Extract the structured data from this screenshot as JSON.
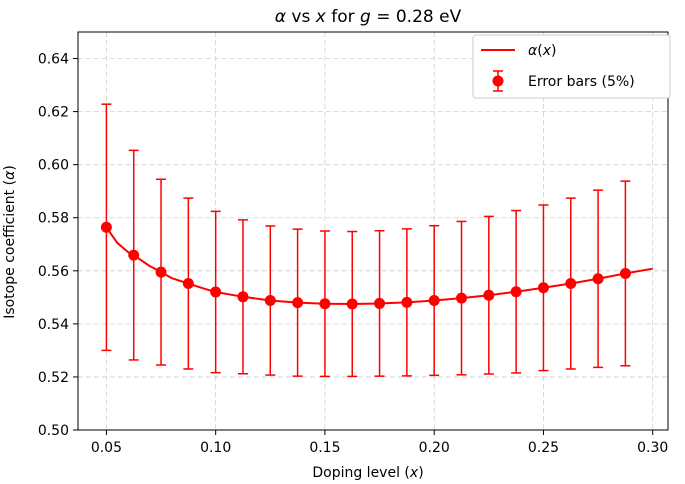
{
  "chart_data": {
    "type": "line",
    "title_parts": {
      "greek": "α",
      "mid": " vs ",
      "var": "x",
      "for": " for ",
      "g": "g",
      "rest": " = 0.28 eV"
    },
    "xlabel": {
      "text": "Doping level (",
      "var": "x",
      "close": ")"
    },
    "ylabel": {
      "text": "Isotope coefficient (",
      "greek": "α",
      "close": ")"
    },
    "xlim": [
      0.037,
      0.307
    ],
    "ylim": [
      0.5,
      0.65
    ],
    "xticks": [
      0.05,
      0.1,
      0.15,
      0.2,
      0.25,
      0.3
    ],
    "xtick_labels": [
      "0.05",
      "0.10",
      "0.15",
      "0.20",
      "0.25",
      "0.30"
    ],
    "yticks": [
      0.5,
      0.52,
      0.54,
      0.56,
      0.58,
      0.6,
      0.62,
      0.64
    ],
    "ytick_labels": [
      "0.50",
      "0.52",
      "0.54",
      "0.56",
      "0.58",
      "0.60",
      "0.62",
      "0.64"
    ],
    "grid": true,
    "legend_position": "top-right",
    "color": "#ff0000",
    "series": [
      {
        "name": "α(x)",
        "kind": "line",
        "x": [
          0.05,
          0.055,
          0.06,
          0.0625,
          0.07,
          0.075,
          0.08,
          0.0875,
          0.095,
          0.1,
          0.1125,
          0.125,
          0.1375,
          0.15,
          0.1625,
          0.175,
          0.1875,
          0.2,
          0.2125,
          0.225,
          0.2375,
          0.25,
          0.2625,
          0.275,
          0.2875,
          0.3
        ],
        "y": [
          0.5764,
          0.5705,
          0.567,
          0.5659,
          0.5617,
          0.5595,
          0.5572,
          0.5552,
          0.5532,
          0.552,
          0.5502,
          0.5488,
          0.548,
          0.5476,
          0.5475,
          0.5477,
          0.5481,
          0.5488,
          0.5497,
          0.5508,
          0.5521,
          0.5536,
          0.5552,
          0.557,
          0.559,
          0.5608
        ]
      },
      {
        "name": "Error bars (5%)",
        "kind": "errorbar",
        "x": [
          0.05,
          0.0625,
          0.075,
          0.0875,
          0.1,
          0.1125,
          0.125,
          0.1375,
          0.15,
          0.1625,
          0.175,
          0.1875,
          0.2,
          0.2125,
          0.225,
          0.2375,
          0.25,
          0.2625,
          0.275,
          0.2875
        ],
        "y": [
          0.5764,
          0.5659,
          0.5595,
          0.5552,
          0.552,
          0.5502,
          0.5488,
          0.548,
          0.5476,
          0.5475,
          0.5477,
          0.5481,
          0.5488,
          0.5497,
          0.5508,
          0.5521,
          0.5536,
          0.5552,
          0.557,
          0.559
        ],
        "err": [
          0.0464,
          0.0395,
          0.035,
          0.0322,
          0.0304,
          0.029,
          0.0281,
          0.0277,
          0.0274,
          0.0273,
          0.0274,
          0.0277,
          0.0282,
          0.0289,
          0.0297,
          0.0306,
          0.0312,
          0.0322,
          0.0334,
          0.0348
        ]
      }
    ],
    "legend": [
      {
        "label": "α",
        "var_open": "(",
        "var": "x",
        "var_close": ")"
      },
      {
        "label": "Error bars (5%)"
      }
    ]
  }
}
